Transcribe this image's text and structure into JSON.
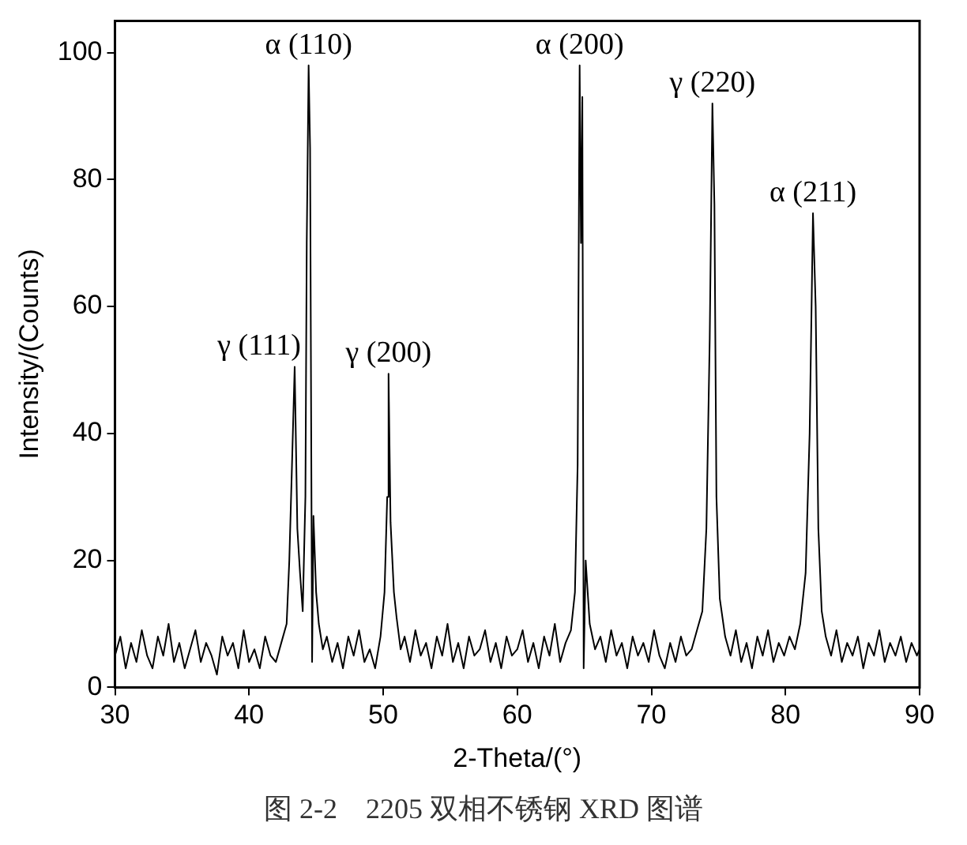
{
  "chart_data": {
    "type": "line",
    "xlabel": "2-Theta/(°)",
    "ylabel": "Intensity/(Counts)",
    "xlim": [
      30,
      90
    ],
    "xticks": [
      30,
      40,
      50,
      60,
      70,
      80,
      90
    ],
    "ylim": [
      0,
      105
    ],
    "yticks": [
      0,
      20,
      40,
      60,
      80,
      100
    ],
    "grid": false,
    "legend": false,
    "marker": "none",
    "line_style": "solid",
    "series": [
      {
        "color": "#000000",
        "x": [
          30,
          30.4,
          30.8,
          31.2,
          31.6,
          32,
          32.4,
          32.8,
          33.2,
          33.6,
          34,
          34.4,
          34.8,
          35.2,
          35.6,
          36,
          36.4,
          36.8,
          37.2,
          37.6,
          38,
          38.4,
          38.8,
          39.2,
          39.6,
          40,
          40.4,
          40.8,
          41.2,
          41.6,
          42,
          42.4,
          42.8,
          43.0,
          43.2,
          43.4,
          43.6,
          43.8,
          44.0,
          44.2,
          44.3,
          44.44,
          44.55,
          44.7,
          44.8,
          45.0,
          45.2,
          45.5,
          45.8,
          46.2,
          46.6,
          47,
          47.4,
          47.8,
          48.2,
          48.6,
          49,
          49.4,
          49.8,
          50.1,
          50.3,
          50.4,
          50.55,
          50.8,
          51,
          51.3,
          51.6,
          52,
          52.4,
          52.8,
          53.2,
          53.6,
          54,
          54.4,
          54.8,
          55.2,
          55.6,
          56,
          56.4,
          56.8,
          57.2,
          57.6,
          58,
          58.4,
          58.8,
          59.2,
          59.6,
          60,
          60.4,
          60.8,
          61.2,
          61.6,
          62,
          62.4,
          62.8,
          63.2,
          63.6,
          64,
          64.3,
          64.5,
          64.65,
          64.75,
          64.85,
          64.95,
          65.1,
          65.4,
          65.8,
          66.2,
          66.6,
          67,
          67.4,
          67.8,
          68.2,
          68.6,
          69,
          69.4,
          69.8,
          70.2,
          70.6,
          71,
          71.4,
          71.8,
          72.2,
          72.6,
          73,
          73.4,
          73.8,
          74.1,
          74.35,
          74.55,
          74.7,
          74.85,
          75.1,
          75.5,
          75.9,
          76.3,
          76.7,
          77.1,
          77.5,
          77.9,
          78.3,
          78.7,
          79.1,
          79.5,
          79.9,
          80.3,
          80.7,
          81.1,
          81.5,
          81.8,
          82.05,
          82.25,
          82.45,
          82.7,
          83,
          83.4,
          83.8,
          84.2,
          84.6,
          85,
          85.4,
          85.8,
          86.2,
          86.6,
          87,
          87.4,
          87.8,
          88.2,
          88.6,
          89,
          89.4,
          89.8,
          90
        ],
        "values": [
          5,
          8,
          3,
          7,
          4,
          9,
          5,
          3,
          8,
          5,
          10,
          4,
          7,
          3,
          6,
          9,
          4,
          7,
          5,
          2,
          8,
          5,
          7,
          3,
          9,
          4,
          6,
          3,
          8,
          5,
          4,
          7,
          10,
          20,
          35,
          50.5,
          25,
          18,
          12,
          30,
          70,
          98,
          85,
          4,
          27,
          15,
          10,
          6,
          8,
          4,
          7,
          3,
          8,
          5,
          9,
          4,
          6,
          3,
          8,
          15,
          30,
          49.4,
          26,
          15,
          11,
          6,
          8,
          4,
          9,
          5,
          7,
          3,
          8,
          5,
          10,
          4,
          7,
          3,
          8,
          5,
          6,
          9,
          4,
          7,
          3,
          8,
          5,
          6,
          9,
          4,
          7,
          3,
          8,
          5,
          10,
          4,
          7,
          9,
          15,
          35,
          98,
          70,
          93,
          3,
          20,
          10,
          6,
          8,
          4,
          9,
          5,
          7,
          3,
          8,
          5,
          7,
          4,
          9,
          5,
          3,
          7,
          4,
          8,
          5,
          6,
          9,
          12,
          25,
          55,
          92,
          76,
          30,
          14,
          8,
          5,
          9,
          4,
          7,
          3,
          8,
          5,
          9,
          4,
          7,
          5,
          8,
          6,
          10,
          18,
          40,
          74.7,
          60,
          25,
          12,
          8,
          5,
          9,
          4,
          7,
          5,
          8,
          3,
          7,
          5,
          9,
          4,
          7,
          5,
          8,
          4,
          7,
          5,
          6
        ]
      }
    ],
    "annotations": [
      {
        "text": "γ (111)",
        "x": 43.4,
        "y": 50.5
      },
      {
        "text": "α (110)",
        "x": 44.44,
        "y": 98
      },
      {
        "text": "γ (200)",
        "x": 50.4,
        "y": 49.4
      },
      {
        "text": "α (200)",
        "x": 64.65,
        "y": 98
      },
      {
        "text": "γ (220)",
        "x": 74.55,
        "y": 92
      },
      {
        "text": "α (211)",
        "x": 82.05,
        "y": 74.7
      },
      "图 2-2　2205 双相不锈钢 XRD 图谱"
    ]
  }
}
